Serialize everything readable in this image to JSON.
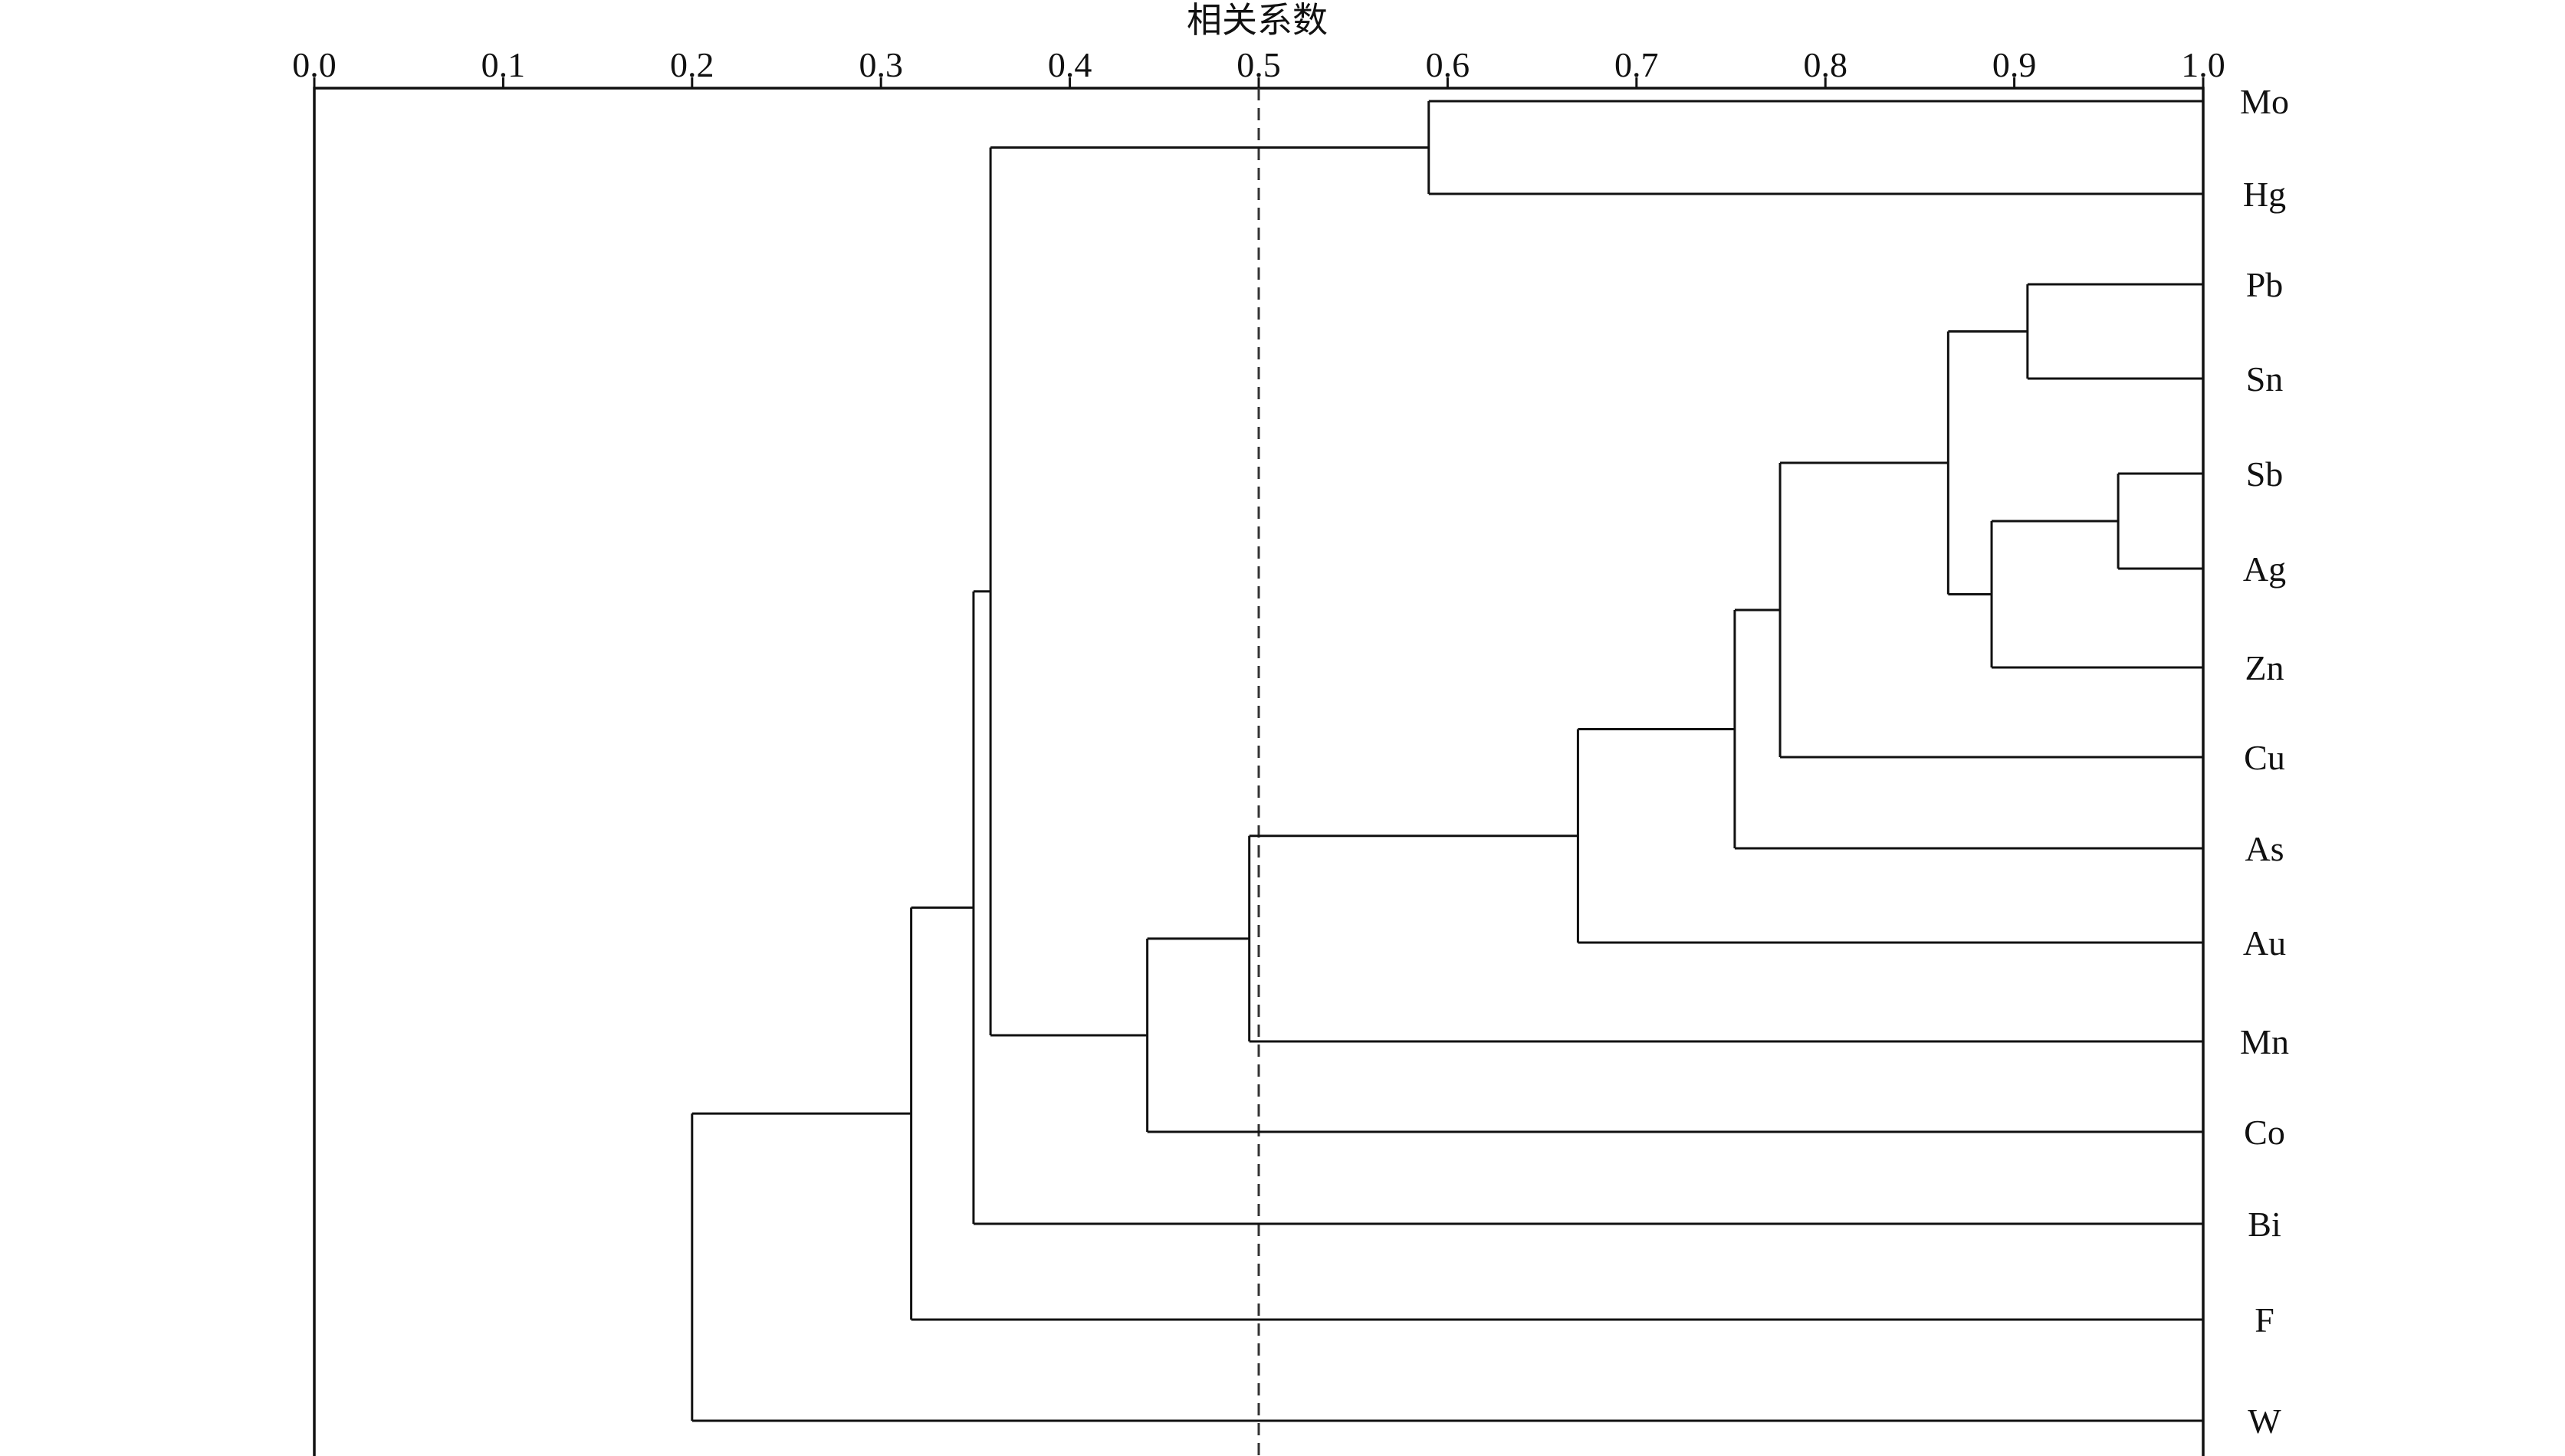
{
  "chart_data": {
    "type": "dendrogram",
    "xlabel": "相关系数",
    "xlim": [
      0.0,
      1.0
    ],
    "x_ticks": [
      "0.0",
      "0.1",
      "0.2",
      "0.3",
      "0.4",
      "0.5",
      "0.6",
      "0.7",
      "0.8",
      "0.9",
      "1.0"
    ],
    "threshold": 0.5,
    "leaves": [
      "Mo",
      "Hg",
      "Pb",
      "Sn",
      "Sb",
      "Ag",
      "Zn",
      "Cu",
      "As",
      "Au",
      "Mn",
      "Co",
      "Bi",
      "F",
      "W"
    ],
    "merges": [
      {
        "left": "Mo",
        "right": "Hg",
        "similarity": 0.59
      },
      {
        "left": "Pb",
        "right": "Sn",
        "similarity": 0.907
      },
      {
        "left": "Sb",
        "right": "Ag",
        "similarity": 0.955
      },
      {
        "left": "Sb+Ag",
        "right": "Zn",
        "similarity": 0.888
      },
      {
        "left": "Pb+Sn",
        "right": "Sb+Ag+Zn",
        "similarity": 0.865
      },
      {
        "left": "Pb..Zn",
        "right": "Cu",
        "similarity": 0.776
      },
      {
        "left": "Pb..Cu",
        "right": "As",
        "similarity": 0.752
      },
      {
        "left": "Pb..As",
        "right": "Au",
        "similarity": 0.669
      },
      {
        "left": "Pb..Au",
        "right": "Mn",
        "similarity": 0.495
      },
      {
        "left": "Pb..Mn",
        "right": "Co",
        "similarity": 0.441
      },
      {
        "left": "Mo+Hg",
        "right": "Pb..Co",
        "similarity": 0.358
      },
      {
        "left": "Mo..Co",
        "right": "Bi",
        "similarity": 0.349
      },
      {
        "left": "Mo..Bi",
        "right": "F",
        "similarity": 0.316
      },
      {
        "left": "Mo..F",
        "right": "W",
        "similarity": 0.2
      }
    ],
    "grid": false,
    "legend": "none"
  }
}
